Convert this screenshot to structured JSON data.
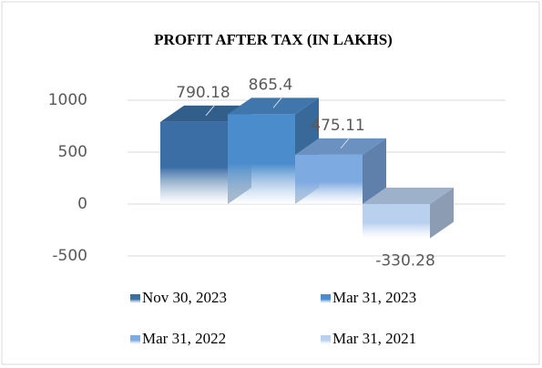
{
  "chart_data": {
    "type": "bar",
    "title": "PROFIT AFTER TAX  (IN LAKHS)",
    "series": [
      {
        "name": "Nov 30, 2023",
        "color": "#3b6ea5",
        "values": [
          790.18
        ]
      },
      {
        "name": "Mar 31, 2023",
        "color": "#4a8ccc",
        "values": [
          865.4
        ]
      },
      {
        "name": "Mar 31, 2022",
        "color": "#7eaae2",
        "values": [
          475.11
        ]
      },
      {
        "name": "Mar 31, 2021",
        "color": "#b9d0ee",
        "values": [
          -330.28
        ]
      }
    ],
    "ylim": [
      -500,
      1000
    ],
    "yticks": [
      -500,
      0,
      500,
      1000
    ],
    "grid": true,
    "legend": "bottom"
  }
}
